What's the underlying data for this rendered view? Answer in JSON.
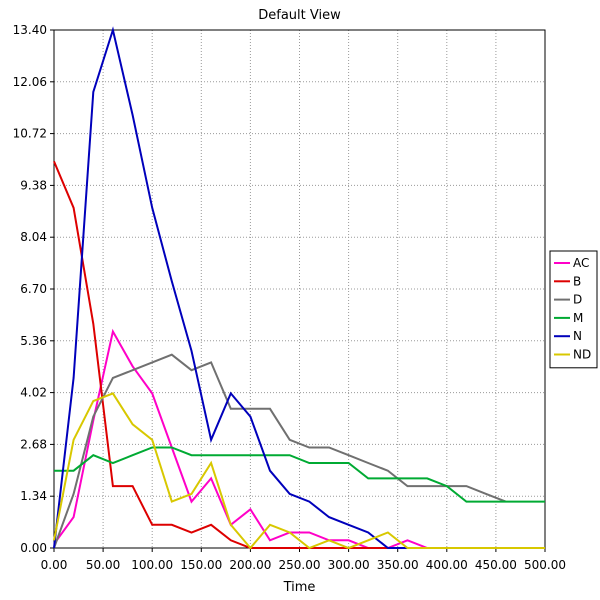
{
  "chart_data": {
    "type": "line",
    "title": "Default View",
    "xlabel": "Time",
    "ylabel": "",
    "xlim": [
      0,
      500
    ],
    "ylim": [
      0,
      13.4
    ],
    "grid": true,
    "legend_position": "right",
    "x_ticks": [
      "0.00",
      "50.00",
      "100.00",
      "150.00",
      "200.00",
      "250.00",
      "300.00",
      "350.00",
      "400.00",
      "450.00",
      "500.00"
    ],
    "y_ticks": [
      "0.00",
      "1.34",
      "2.68",
      "4.02",
      "5.36",
      "6.70",
      "8.04",
      "9.38",
      "10.72",
      "12.06",
      "13.40"
    ],
    "series": [
      {
        "name": "AC",
        "color": "#ff00c8",
        "x": [
          0,
          20,
          40,
          60,
          80,
          100,
          120,
          140,
          160,
          180,
          200,
          220,
          240,
          260,
          280,
          300,
          320,
          340,
          360,
          380,
          400,
          500
        ],
        "y": [
          0.1,
          0.8,
          3.3,
          5.6,
          4.7,
          4.0,
          2.6,
          1.2,
          1.8,
          0.6,
          1.0,
          0.2,
          0.4,
          0.4,
          0.2,
          0.2,
          0.0,
          0.0,
          0.2,
          0.0,
          0.0,
          0.0
        ]
      },
      {
        "name": "B",
        "color": "#dd0000",
        "x": [
          0,
          20,
          40,
          60,
          80,
          100,
          120,
          140,
          160,
          180,
          200,
          500
        ],
        "y": [
          10.0,
          8.8,
          5.8,
          1.6,
          1.6,
          0.6,
          0.6,
          0.4,
          0.6,
          0.2,
          0.0,
          0.0
        ]
      },
      {
        "name": "D",
        "color": "#707070",
        "x": [
          0,
          20,
          40,
          60,
          80,
          100,
          120,
          140,
          160,
          180,
          200,
          220,
          240,
          260,
          280,
          300,
          320,
          340,
          360,
          380,
          400,
          420,
          440,
          460
        ],
        "y": [
          0.0,
          1.4,
          3.4,
          4.4,
          4.6,
          4.8,
          5.0,
          4.6,
          4.8,
          3.6,
          3.6,
          3.6,
          2.8,
          2.6,
          2.6,
          2.4,
          2.2,
          2.0,
          1.6,
          1.6,
          1.6,
          1.6,
          1.4,
          1.2
        ]
      },
      {
        "name": "M",
        "color": "#00aa33",
        "x": [
          0,
          20,
          40,
          60,
          80,
          100,
          120,
          140,
          160,
          180,
          200,
          220,
          240,
          260,
          280,
          300,
          320,
          340,
          360,
          380,
          400,
          420,
          440,
          460,
          480,
          500
        ],
        "y": [
          2.0,
          2.0,
          2.4,
          2.2,
          2.4,
          2.6,
          2.6,
          2.4,
          2.4,
          2.4,
          2.4,
          2.4,
          2.4,
          2.2,
          2.2,
          2.2,
          1.8,
          1.8,
          1.8,
          1.8,
          1.6,
          1.2,
          1.2,
          1.2,
          1.2,
          1.2
        ]
      },
      {
        "name": "N",
        "color": "#0000bb",
        "x": [
          0,
          20,
          40,
          60,
          80,
          100,
          120,
          140,
          160,
          180,
          200,
          220,
          240,
          260,
          280,
          300,
          320,
          340,
          360
        ],
        "y": [
          0.0,
          4.4,
          11.8,
          13.4,
          11.2,
          8.8,
          6.9,
          5.1,
          2.8,
          4.0,
          3.4,
          2.0,
          1.4,
          1.2,
          0.8,
          0.6,
          0.4,
          0.0,
          0.0
        ]
      },
      {
        "name": "ND",
        "color": "#d8c800",
        "x": [
          0,
          20,
          40,
          60,
          80,
          100,
          120,
          140,
          160,
          180,
          200,
          220,
          240,
          260,
          280,
          300,
          320,
          340,
          360,
          380,
          400,
          500
        ],
        "y": [
          0.2,
          2.8,
          3.8,
          4.0,
          3.2,
          2.8,
          1.2,
          1.4,
          2.2,
          0.6,
          0.0,
          0.6,
          0.4,
          0.0,
          0.2,
          0.0,
          0.2,
          0.4,
          0.0,
          0.0,
          0.0,
          0.0
        ]
      }
    ]
  }
}
